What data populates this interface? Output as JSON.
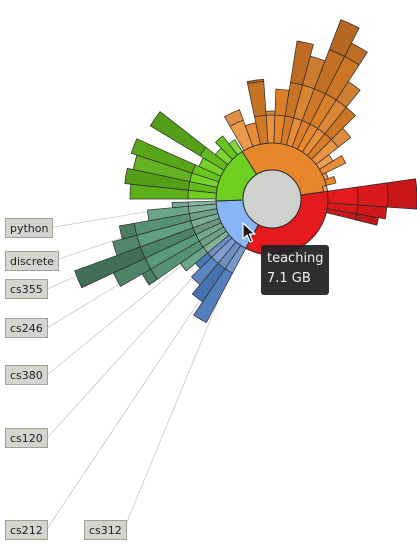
{
  "labels": [
    {
      "id": "python",
      "text": "python"
    },
    {
      "id": "discrete",
      "text": "discrete"
    },
    {
      "id": "cs355",
      "text": "cs355"
    },
    {
      "id": "cs246",
      "text": "cs246"
    },
    {
      "id": "cs380",
      "text": "cs380"
    },
    {
      "id": "cs120",
      "text": "cs120"
    },
    {
      "id": "cs212",
      "text": "cs212"
    },
    {
      "id": "cs312",
      "text": "cs312"
    }
  ],
  "tooltip": {
    "name": "teaching",
    "size": "7.1 GB"
  },
  "colors": {
    "background": "#ffffff",
    "center": "#cfd2cc",
    "hovered": "#8ab4f8",
    "red": "#e41a1c",
    "orange": "#e8862a",
    "green": "#6fcf1f",
    "teal": "#5a9a78",
    "blue": "#4a78b8",
    "outline": "#2b2b2b",
    "leader": "#c8c8c8"
  }
}
